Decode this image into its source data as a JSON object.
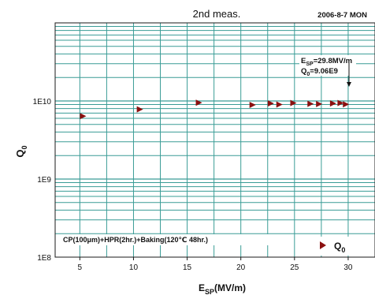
{
  "header": {
    "title": "2nd meas.",
    "date": "2006-8-7 MON"
  },
  "chart_data": {
    "type": "scatter",
    "title": "2nd meas.",
    "ylabel": "Q",
    "ylabel_sub": "0",
    "xlabel": "E",
    "xlabel_sub": "SP",
    "xlabel_unit": "(MV/m)",
    "y_scale": "log",
    "xlim": [
      2.7,
      32.5
    ],
    "ylim": [
      100000000.0,
      100000000000.0
    ],
    "x_ticks": [
      5,
      10,
      15,
      20,
      25,
      30
    ],
    "y_ticks": [
      {
        "value": 100000000.0,
        "label": "1E8"
      },
      {
        "value": 1000000000.0,
        "label": "1E9"
      },
      {
        "value": 10000000000.0,
        "label": "1E10"
      }
    ],
    "grid": true,
    "grid_color": "#3a9c96",
    "marker_color": "#8b1010",
    "series": [
      {
        "name": "Q",
        "name_sub": "0",
        "x": [
          5.3,
          10.6,
          16.1,
          21.1,
          22.8,
          23.6,
          24.9,
          26.5,
          27.3,
          28.6,
          29.3,
          29.8
        ],
        "y": [
          6400000000.0,
          7800000000.0,
          9500000000.0,
          8900000000.0,
          9300000000.0,
          9000000000.0,
          9400000000.0,
          9200000000.0,
          9150000000.0,
          9300000000.0,
          9400000000.0,
          9060000000.0
        ]
      }
    ],
    "annotation": {
      "line1_main": "E",
      "line1_sub": "SP",
      "line1_rest": "=29.8MV/m",
      "line2_main": "Q",
      "line2_sub": "0",
      "line2_rest": "=9.06E9",
      "x": 29.8,
      "y": 9060000000.0
    },
    "condition_text": "CP(100μm)+HPR(2hr.)+Baking(120℃ 48hr.)",
    "legend_position": "bottom-right"
  }
}
